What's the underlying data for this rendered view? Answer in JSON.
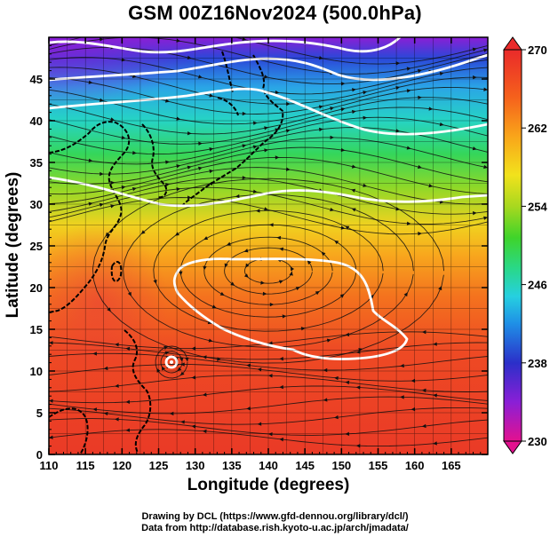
{
  "title": "GSM 00Z16Nov2024 (500.0hPa)",
  "x_axis": {
    "label": "Longitude (degrees)",
    "min": 110,
    "max": 170,
    "ticks": [
      "110",
      "115",
      "120",
      "125",
      "130",
      "135",
      "140",
      "145",
      "150",
      "155",
      "160",
      "165"
    ],
    "tick_values": [
      110,
      115,
      120,
      125,
      130,
      135,
      140,
      145,
      150,
      155,
      160,
      165
    ]
  },
  "y_axis": {
    "label": "Latitude  (degrees)",
    "min": 0,
    "max": 50,
    "ticks": [
      "0",
      "5",
      "10",
      "15",
      "20",
      "25",
      "30",
      "35",
      "40",
      "45"
    ],
    "tick_values": [
      0,
      5,
      10,
      15,
      20,
      25,
      30,
      35,
      40,
      45
    ]
  },
  "colorbar": {
    "min": 230,
    "max": 270,
    "labels": [
      "270",
      "262",
      "254",
      "246",
      "238",
      "230"
    ],
    "label_values": [
      270,
      262,
      254,
      246,
      238,
      230
    ],
    "colors": [
      "#e3118f",
      "#8a1fd6",
      "#2b2fc9",
      "#1f8fe6",
      "#26d0e0",
      "#29d88a",
      "#3fd42a",
      "#a8d81f",
      "#f2e21c",
      "#f9a41a",
      "#f5601c",
      "#ea2a2a"
    ]
  },
  "credits": {
    "line1": "Drawing by DCL (https://www.gfd-dennou.org/library/dcl/)",
    "line2": "Data from http://database.rish.kyoto-u.ac.jp/arch/jmadata/"
  },
  "chart_data": {
    "type": "heatmap",
    "title": "GSM 00Z16Nov2024 (500.0hPa)",
    "xlabel": "Longitude (degrees)",
    "ylabel": "Latitude  (degrees)",
    "xlim": [
      110,
      170
    ],
    "ylim": [
      0,
      50
    ],
    "value_range": [
      230,
      270
    ],
    "grid": true,
    "field_samples": [
      {
        "lon": 112,
        "lat": 49,
        "temp": 236
      },
      {
        "lon": 140,
        "lat": 49,
        "temp": 250
      },
      {
        "lon": 165,
        "lat": 49,
        "temp": 252
      },
      {
        "lon": 120,
        "lat": 44,
        "temp": 250
      },
      {
        "lon": 150,
        "lat": 42,
        "temp": 254
      },
      {
        "lon": 120,
        "lat": 36,
        "temp": 258
      },
      {
        "lon": 150,
        "lat": 33,
        "temp": 260
      },
      {
        "lon": 140,
        "lat": 27,
        "temp": 263
      },
      {
        "lon": 140,
        "lat": 20,
        "temp": 266
      },
      {
        "lon": 125,
        "lat": 10,
        "temp": 266
      },
      {
        "lon": 160,
        "lat": 5,
        "temp": 265
      }
    ],
    "contour_values": [
      248,
      254,
      260,
      266
    ]
  }
}
